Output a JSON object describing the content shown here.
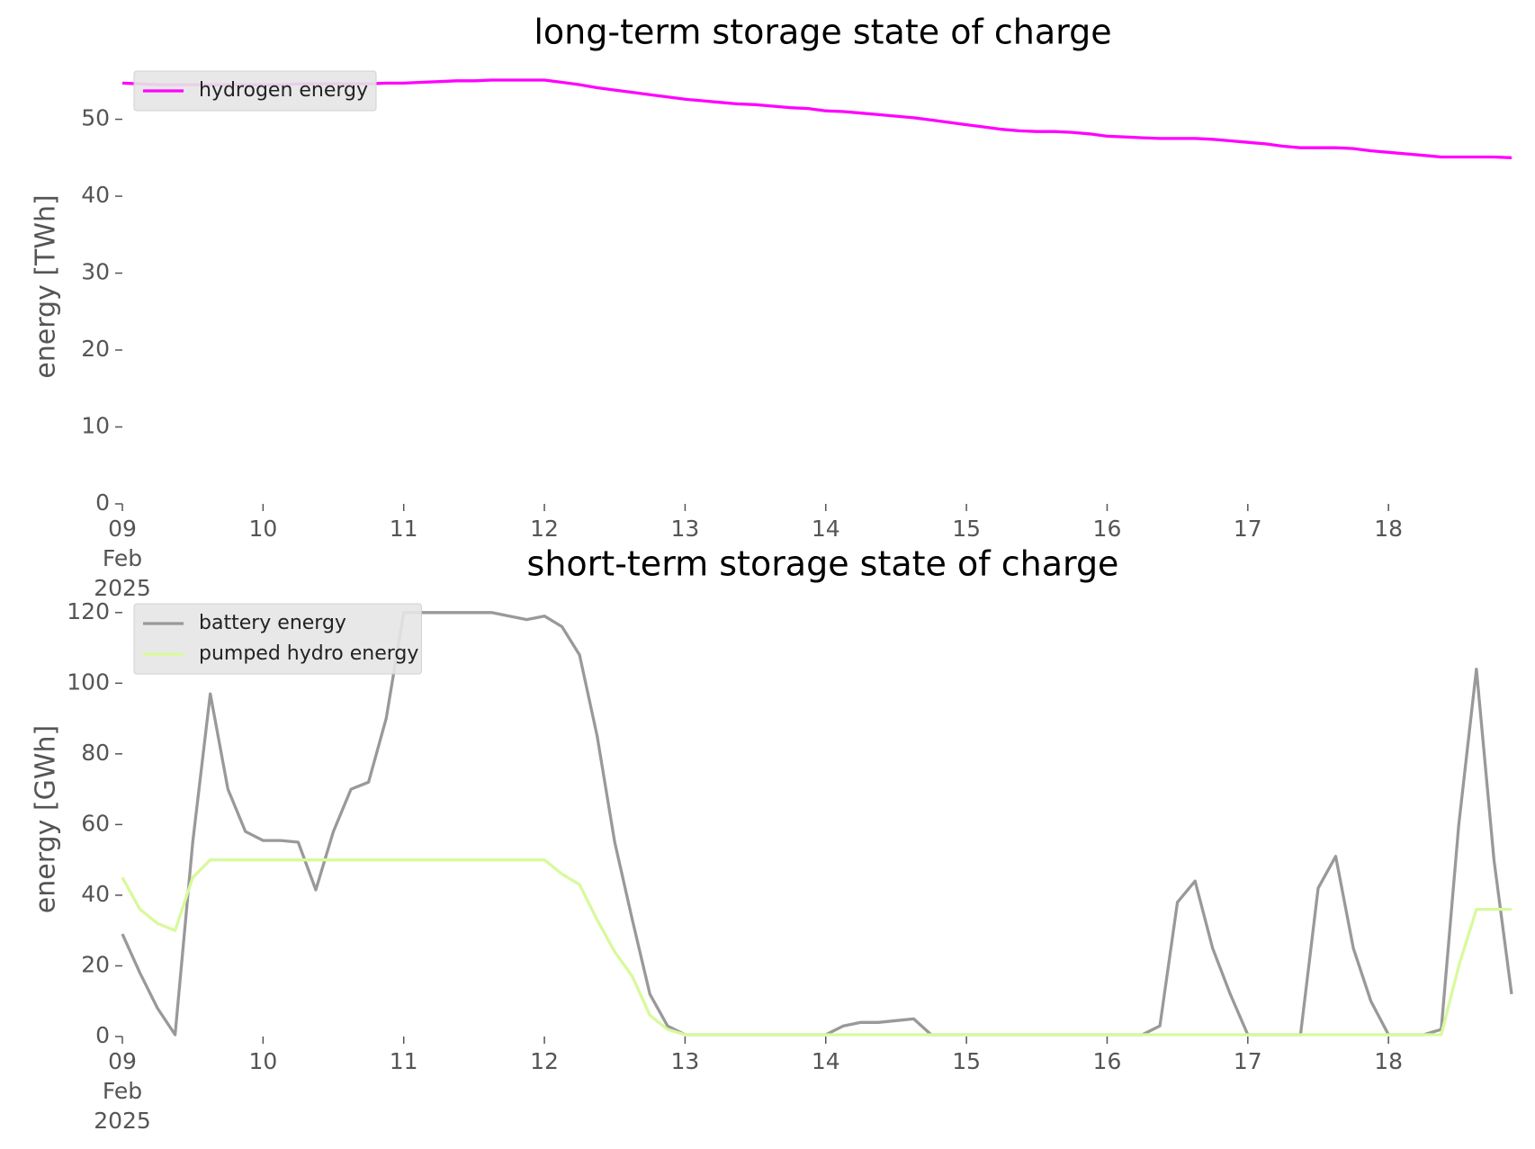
{
  "chart_data": [
    {
      "type": "line",
      "title": "long-term storage state of charge",
      "ylabel": "energy [TWh]",
      "legend": "upper left",
      "x": [
        "2025-02-09T00:00",
        "2025-02-09T03:00",
        "2025-02-09T06:00",
        "2025-02-09T09:00",
        "2025-02-09T12:00",
        "2025-02-09T15:00",
        "2025-02-09T18:00",
        "2025-02-09T21:00",
        "2025-02-10T00:00",
        "2025-02-10T03:00",
        "2025-02-10T06:00",
        "2025-02-10T09:00",
        "2025-02-10T12:00",
        "2025-02-10T15:00",
        "2025-02-10T18:00",
        "2025-02-10T21:00",
        "2025-02-11T00:00",
        "2025-02-11T03:00",
        "2025-02-11T06:00",
        "2025-02-11T09:00",
        "2025-02-11T12:00",
        "2025-02-11T15:00",
        "2025-02-11T18:00",
        "2025-02-11T21:00",
        "2025-02-12T00:00",
        "2025-02-12T03:00",
        "2025-02-12T06:00",
        "2025-02-12T09:00",
        "2025-02-12T12:00",
        "2025-02-12T15:00",
        "2025-02-12T18:00",
        "2025-02-12T21:00",
        "2025-02-13T00:00",
        "2025-02-13T03:00",
        "2025-02-13T06:00",
        "2025-02-13T09:00",
        "2025-02-13T12:00",
        "2025-02-13T15:00",
        "2025-02-13T18:00",
        "2025-02-13T21:00",
        "2025-02-14T00:00",
        "2025-02-14T03:00",
        "2025-02-14T06:00",
        "2025-02-14T09:00",
        "2025-02-14T12:00",
        "2025-02-14T15:00",
        "2025-02-14T18:00",
        "2025-02-14T21:00",
        "2025-02-15T00:00",
        "2025-02-15T03:00",
        "2025-02-15T06:00",
        "2025-02-15T09:00",
        "2025-02-15T12:00",
        "2025-02-15T15:00",
        "2025-02-15T18:00",
        "2025-02-15T21:00",
        "2025-02-16T00:00",
        "2025-02-16T03:00",
        "2025-02-16T06:00",
        "2025-02-16T09:00",
        "2025-02-16T12:00",
        "2025-02-16T15:00",
        "2025-02-16T18:00",
        "2025-02-16T21:00",
        "2025-02-17T00:00",
        "2025-02-17T03:00",
        "2025-02-17T06:00",
        "2025-02-17T09:00",
        "2025-02-17T12:00",
        "2025-02-17T15:00",
        "2025-02-17T18:00",
        "2025-02-17T21:00",
        "2025-02-18T00:00",
        "2025-02-18T03:00",
        "2025-02-18T06:00",
        "2025-02-18T09:00",
        "2025-02-18T12:00",
        "2025-02-18T15:00",
        "2025-02-18T18:00",
        "2025-02-18T21:00"
      ],
      "series": [
        {
          "name": "hydrogen energy",
          "color": "#ff00ff",
          "values": [
            54.7,
            54.6,
            54.5,
            54.5,
            54.5,
            54.5,
            54.5,
            54.5,
            54.5,
            54.5,
            54.6,
            54.6,
            54.6,
            54.6,
            54.6,
            54.7,
            54.7,
            54.8,
            54.9,
            55.0,
            55.0,
            55.1,
            55.1,
            55.1,
            55.1,
            54.8,
            54.5,
            54.1,
            53.8,
            53.5,
            53.2,
            52.9,
            52.6,
            52.4,
            52.2,
            52.0,
            51.9,
            51.7,
            51.5,
            51.4,
            51.1,
            51.0,
            50.8,
            50.6,
            50.4,
            50.2,
            49.9,
            49.6,
            49.3,
            49.0,
            48.7,
            48.5,
            48.4,
            48.4,
            48.3,
            48.1,
            47.8,
            47.7,
            47.6,
            47.5,
            47.5,
            47.5,
            47.4,
            47.2,
            47.0,
            46.8,
            46.5,
            46.3,
            46.3,
            46.3,
            46.2,
            45.9,
            45.7,
            45.5,
            45.3,
            45.1,
            45.1,
            45.1,
            45.1,
            45.0
          ]
        }
      ],
      "xlim": [
        "2025-02-09T00:00",
        "2025-02-18T23:00"
      ],
      "xticks": [
        {
          "value": "2025-02-09T00:00",
          "label": "09\nFeb\n2025"
        },
        {
          "value": "2025-02-10T00:00",
          "label": "10"
        },
        {
          "value": "2025-02-11T00:00",
          "label": "11"
        },
        {
          "value": "2025-02-12T00:00",
          "label": "12"
        },
        {
          "value": "2025-02-13T00:00",
          "label": "13"
        },
        {
          "value": "2025-02-14T00:00",
          "label": "14"
        },
        {
          "value": "2025-02-15T00:00",
          "label": "15"
        },
        {
          "value": "2025-02-16T00:00",
          "label": "16"
        },
        {
          "value": "2025-02-17T00:00",
          "label": "17"
        },
        {
          "value": "2025-02-18T00:00",
          "label": "18"
        }
      ],
      "ylim": [
        0,
        56.5
      ],
      "yticks": [
        0,
        10,
        20,
        30,
        40,
        50
      ]
    },
    {
      "type": "line",
      "title": "short-term storage state of charge",
      "ylabel": "energy [GWh]",
      "legend": "upper left",
      "x": [
        "2025-02-09T00:00",
        "2025-02-09T03:00",
        "2025-02-09T06:00",
        "2025-02-09T09:00",
        "2025-02-09T12:00",
        "2025-02-09T15:00",
        "2025-02-09T18:00",
        "2025-02-09T21:00",
        "2025-02-10T00:00",
        "2025-02-10T03:00",
        "2025-02-10T06:00",
        "2025-02-10T09:00",
        "2025-02-10T12:00",
        "2025-02-10T15:00",
        "2025-02-10T18:00",
        "2025-02-10T21:00",
        "2025-02-11T00:00",
        "2025-02-11T03:00",
        "2025-02-11T06:00",
        "2025-02-11T09:00",
        "2025-02-11T12:00",
        "2025-02-11T15:00",
        "2025-02-11T18:00",
        "2025-02-11T21:00",
        "2025-02-12T00:00",
        "2025-02-12T03:00",
        "2025-02-12T06:00",
        "2025-02-12T09:00",
        "2025-02-12T12:00",
        "2025-02-12T15:00",
        "2025-02-12T18:00",
        "2025-02-12T21:00",
        "2025-02-13T00:00",
        "2025-02-13T03:00",
        "2025-02-13T06:00",
        "2025-02-13T09:00",
        "2025-02-13T12:00",
        "2025-02-13T15:00",
        "2025-02-13T18:00",
        "2025-02-13T21:00",
        "2025-02-14T00:00",
        "2025-02-14T03:00",
        "2025-02-14T06:00",
        "2025-02-14T09:00",
        "2025-02-14T12:00",
        "2025-02-14T15:00",
        "2025-02-14T18:00",
        "2025-02-14T21:00",
        "2025-02-15T00:00",
        "2025-02-15T03:00",
        "2025-02-15T06:00",
        "2025-02-15T09:00",
        "2025-02-15T12:00",
        "2025-02-15T15:00",
        "2025-02-15T18:00",
        "2025-02-15T21:00",
        "2025-02-16T00:00",
        "2025-02-16T03:00",
        "2025-02-16T06:00",
        "2025-02-16T09:00",
        "2025-02-16T12:00",
        "2025-02-16T15:00",
        "2025-02-16T18:00",
        "2025-02-16T21:00",
        "2025-02-17T00:00",
        "2025-02-17T03:00",
        "2025-02-17T06:00",
        "2025-02-17T09:00",
        "2025-02-17T12:00",
        "2025-02-17T15:00",
        "2025-02-17T18:00",
        "2025-02-17T21:00",
        "2025-02-18T00:00",
        "2025-02-18T03:00",
        "2025-02-18T06:00",
        "2025-02-18T09:00",
        "2025-02-18T12:00",
        "2025-02-18T15:00",
        "2025-02-18T18:00",
        "2025-02-18T21:00"
      ],
      "series": [
        {
          "name": "battery energy",
          "color": "#999999",
          "values": [
            29,
            18,
            8,
            0.5,
            55,
            97,
            70,
            58,
            55.5,
            55.5,
            55,
            41.5,
            58,
            70,
            72,
            90,
            120,
            120,
            120,
            120,
            120,
            120,
            119,
            118,
            119,
            116,
            108,
            85,
            55,
            33,
            12,
            3,
            0.5,
            0.5,
            0.5,
            0.5,
            0.5,
            0.5,
            0.5,
            0.5,
            0.5,
            3,
            4,
            4,
            4.5,
            5,
            0.5,
            0.5,
            0.5,
            0.5,
            0.5,
            0.5,
            0.5,
            0.5,
            0.5,
            0.5,
            0.5,
            0.5,
            0.5,
            3,
            38,
            44,
            25,
            12,
            0.5,
            0.5,
            0.5,
            0.5,
            42,
            51,
            25,
            10,
            0.5,
            0.5,
            0.5,
            2,
            60,
            104,
            50,
            12
          ]
        },
        {
          "name": "pumped hydro energy",
          "color": "#d9f99d",
          "values": [
            45,
            36,
            32,
            30,
            45,
            50,
            50,
            50,
            50,
            50,
            50,
            50,
            50,
            50,
            50,
            50,
            50,
            50,
            50,
            50,
            50,
            50,
            50,
            50,
            50,
            46,
            43,
            33,
            24,
            17,
            6,
            2,
            0.5,
            0.5,
            0.5,
            0.5,
            0.5,
            0.5,
            0.5,
            0.5,
            0.5,
            0.5,
            0.5,
            0.5,
            0.5,
            0.5,
            0.5,
            0.5,
            0.5,
            0.5,
            0.5,
            0.5,
            0.5,
            0.5,
            0.5,
            0.5,
            0.5,
            0.5,
            0.5,
            0.5,
            0.5,
            0.5,
            0.5,
            0.5,
            0.5,
            0.5,
            0.5,
            0.5,
            0.5,
            0.5,
            0.5,
            0.5,
            0.5,
            0.5,
            0.5,
            0.5,
            20,
            36,
            36,
            36
          ]
        }
      ],
      "xlim": [
        "2025-02-09T00:00",
        "2025-02-18T23:00"
      ],
      "xticks": [
        {
          "value": "2025-02-09T00:00",
          "label": "09\nFeb\n2025"
        },
        {
          "value": "2025-02-10T00:00",
          "label": "10"
        },
        {
          "value": "2025-02-11T00:00",
          "label": "11"
        },
        {
          "value": "2025-02-12T00:00",
          "label": "12"
        },
        {
          "value": "2025-02-13T00:00",
          "label": "13"
        },
        {
          "value": "2025-02-14T00:00",
          "label": "14"
        },
        {
          "value": "2025-02-15T00:00",
          "label": "15"
        },
        {
          "value": "2025-02-16T00:00",
          "label": "16"
        },
        {
          "value": "2025-02-17T00:00",
          "label": "17"
        },
        {
          "value": "2025-02-18T00:00",
          "label": "18"
        }
      ],
      "ylim": [
        0,
        123
      ],
      "yticks": [
        0,
        20,
        40,
        60,
        80,
        100,
        120
      ]
    }
  ]
}
